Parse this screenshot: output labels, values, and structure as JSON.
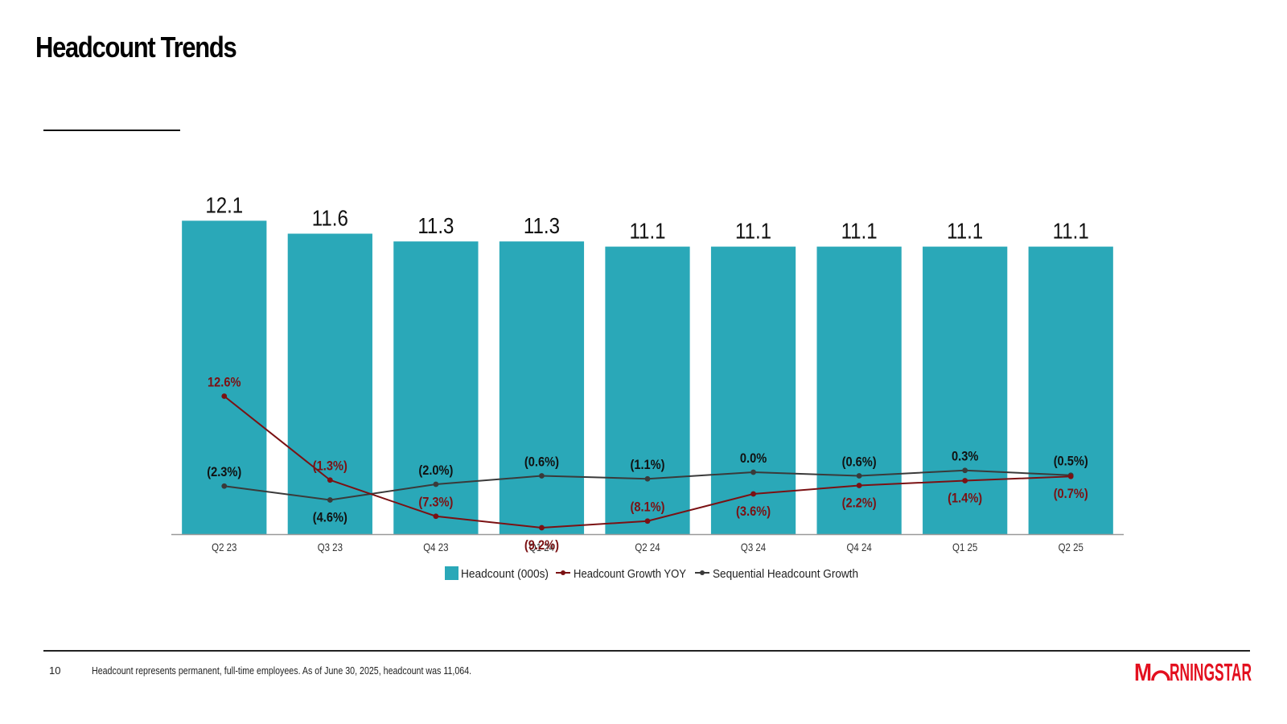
{
  "page": {
    "title": "Headcount Trends",
    "page_number": "10",
    "footnote": "Headcount represents permanent, full-time employees. As of June 30, 2025, headcount was 11,064.",
    "brand": "MORNINGSTAR"
  },
  "colors": {
    "bar": "#2aa8b8",
    "yoy_line": "#7b1113",
    "sequential_line": "#3a3a3a",
    "brand_red": "#e3101f",
    "axis": "#999999"
  },
  "chart_data": {
    "type": "bar",
    "categories": [
      "Q2 23",
      "Q3 23",
      "Q4 23",
      "Q1 24",
      "Q2 24",
      "Q3 24",
      "Q4 24",
      "Q1 25",
      "Q2 25"
    ],
    "series": [
      {
        "name": "Headcount (000s)",
        "type": "bar",
        "values": [
          12.1,
          11.6,
          11.3,
          11.3,
          11.1,
          11.1,
          11.1,
          11.1,
          11.1
        ],
        "labels": [
          "12.1",
          "11.6",
          "11.3",
          "11.3",
          "11.1",
          "11.1",
          "11.1",
          "11.1",
          "11.1"
        ]
      },
      {
        "name": "Headcount Growth YOY",
        "type": "line",
        "values": [
          12.6,
          -1.3,
          -7.3,
          -9.2,
          -8.1,
          -3.6,
          -2.2,
          -1.4,
          -0.7
        ],
        "labels": [
          "12.6%",
          "(1.3%)",
          "(7.3%)",
          "(9.2%)",
          "(8.1%)",
          "(3.6%)",
          "(2.2%)",
          "(1.4%)",
          "(0.7%)"
        ]
      },
      {
        "name": "Sequential Headcount Growth",
        "type": "line",
        "values": [
          -2.3,
          -4.6,
          -2.0,
          -0.6,
          -1.1,
          0.0,
          -0.6,
          0.3,
          -0.5
        ],
        "labels": [
          "(2.3%)",
          "(4.6%)",
          "(2.0%)",
          "(0.6%)",
          "(1.1%)",
          "0.0%",
          "(0.6%)",
          "0.3%",
          "(0.5%)"
        ]
      }
    ],
    "legend": [
      "Headcount (000s)",
      "Headcount Growth YOY",
      "Sequential Headcount Growth"
    ],
    "legend_position": "bottom",
    "grid": false
  }
}
